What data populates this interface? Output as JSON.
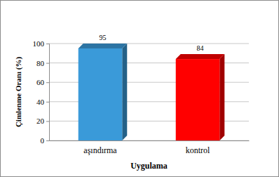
{
  "chart_data": {
    "type": "bar",
    "categories": [
      "aşındırma",
      "kontrol"
    ],
    "values": [
      95,
      84
    ],
    "colors": [
      "#3a9ad9",
      "#ff0000"
    ],
    "x_label": "Uygulama",
    "y_label": "Çimlenme Oranı (%)",
    "ylim": [
      0,
      100
    ],
    "yticks": [
      0,
      20,
      40,
      60,
      80,
      100
    ],
    "grid": true,
    "data_labels": true
  }
}
